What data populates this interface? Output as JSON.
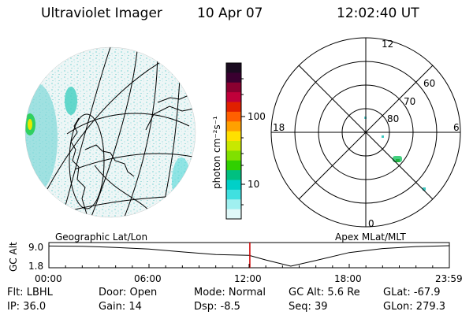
{
  "header": {
    "instrument": "Ultraviolet Imager",
    "date": "10 Apr 07",
    "time": "12:02:40 UT"
  },
  "left_map": {
    "label": "Geographic Lat/Lon"
  },
  "colorbar": {
    "unit_label": "photon cm⁻²s⁻¹",
    "ticks": [
      "100",
      "10"
    ],
    "colors": [
      "#1a0b20",
      "#3a0030",
      "#8a0030",
      "#c0003a",
      "#e02000",
      "#ff6000",
      "#ffa000",
      "#ffe000",
      "#c8e800",
      "#80e000",
      "#30d000",
      "#00c080",
      "#00d0c8",
      "#40e0e0",
      "#a0f0f0",
      "#e0f8f8"
    ]
  },
  "right_map": {
    "label": "Apex MLat/MLT",
    "mlt_labels": [
      "12",
      "18",
      "6",
      "0"
    ],
    "mlat_labels": [
      "60",
      "70",
      "80"
    ]
  },
  "timeline": {
    "y_label": "GC Alt",
    "y_ticks": [
      "9.0",
      "1.8"
    ],
    "x_ticks": [
      "00:00",
      "06:00",
      "12:00",
      "18:00",
      "23:59"
    ],
    "x_range_hours": [
      0,
      24
    ],
    "y_range_re": [
      1.8,
      9.0
    ],
    "current_time_hours": 12.044,
    "marker_color": "#d00000",
    "altitude_curve": [
      [
        0,
        8.9
      ],
      [
        2,
        8.8
      ],
      [
        4,
        8.4
      ],
      [
        6,
        7.8
      ],
      [
        8,
        6.8
      ],
      [
        10,
        5.9
      ],
      [
        12,
        5.6
      ],
      [
        13,
        4.0
      ],
      [
        14.5,
        1.8
      ],
      [
        16,
        3.8
      ],
      [
        18,
        6.6
      ],
      [
        20,
        8.0
      ],
      [
        22,
        8.7
      ],
      [
        24,
        9.0
      ]
    ]
  },
  "status": {
    "flt": "Flt: LBHL",
    "ip": "IP: 36.0",
    "door": "Door: Open",
    "gain": "Gain: 14",
    "mode": "Mode: Normal",
    "dsp": "Dsp:   -8.5",
    "gc_alt": "GC Alt: 5.6 Re",
    "seq": "Seq: 39",
    "glat": "GLat:  -67.9",
    "glon": "GLon: 279.3"
  }
}
